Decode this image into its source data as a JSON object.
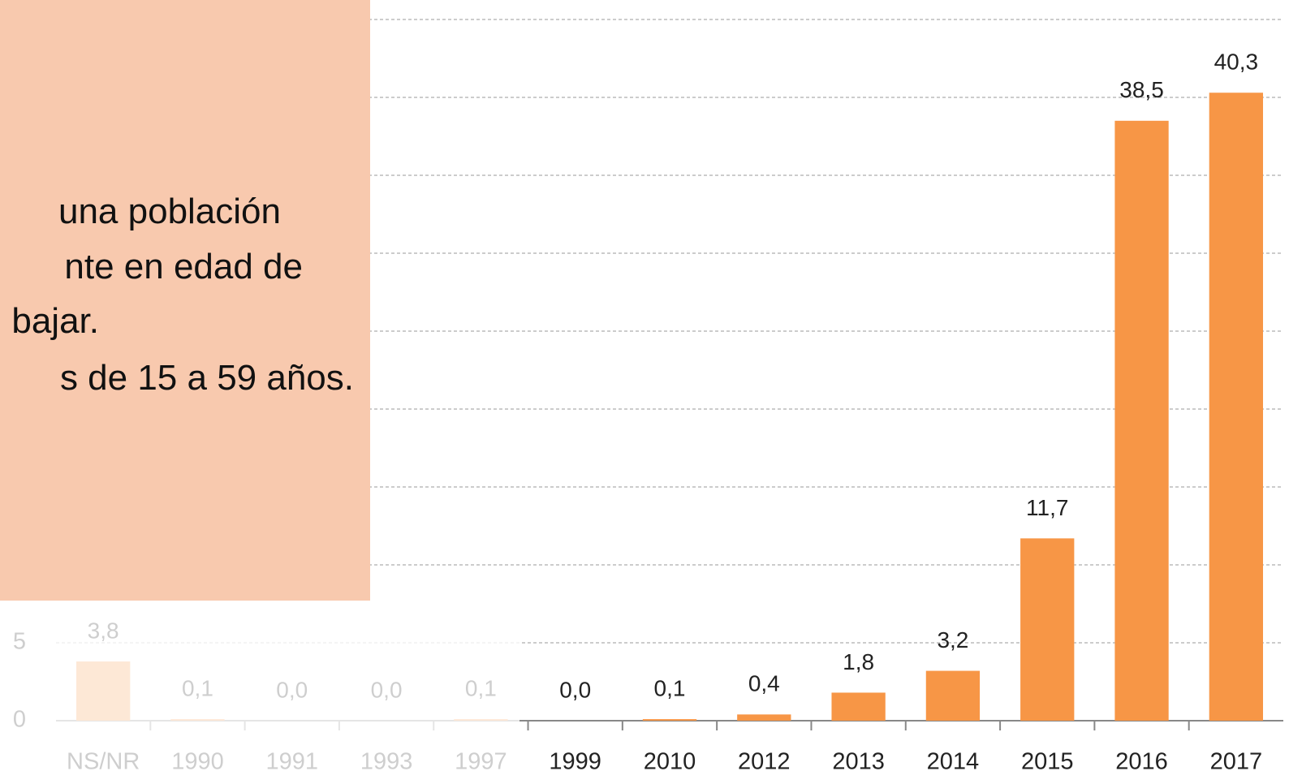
{
  "chart_data": {
    "type": "bar",
    "categories": [
      "NS/NR",
      "1990",
      "1991",
      "1993",
      "1997",
      "1999",
      "2010",
      "2012",
      "2013",
      "2014",
      "2015",
      "2016",
      "2017"
    ],
    "values": [
      3.8,
      0.1,
      0.0,
      0.0,
      0.1,
      0.0,
      0.1,
      0.4,
      1.8,
      3.2,
      11.7,
      38.5,
      40.3
    ],
    "value_labels": [
      "3,8",
      "0,1",
      "0,0",
      "0,0",
      "0,1",
      "0,0",
      "0,1",
      "0,4",
      "1,8",
      "3,2",
      "11,7",
      "38,5",
      "40,3"
    ],
    "color": "#f79646",
    "ylim": [
      0,
      46.25
    ],
    "yticks": [
      0,
      5,
      10,
      15,
      20,
      25,
      30,
      35,
      40,
      45
    ],
    "grid": true
  },
  "overlay": {
    "lines": [
      "una población",
      "nte en edad de",
      "bajar.",
      "s de 15 a 59 años."
    ]
  }
}
